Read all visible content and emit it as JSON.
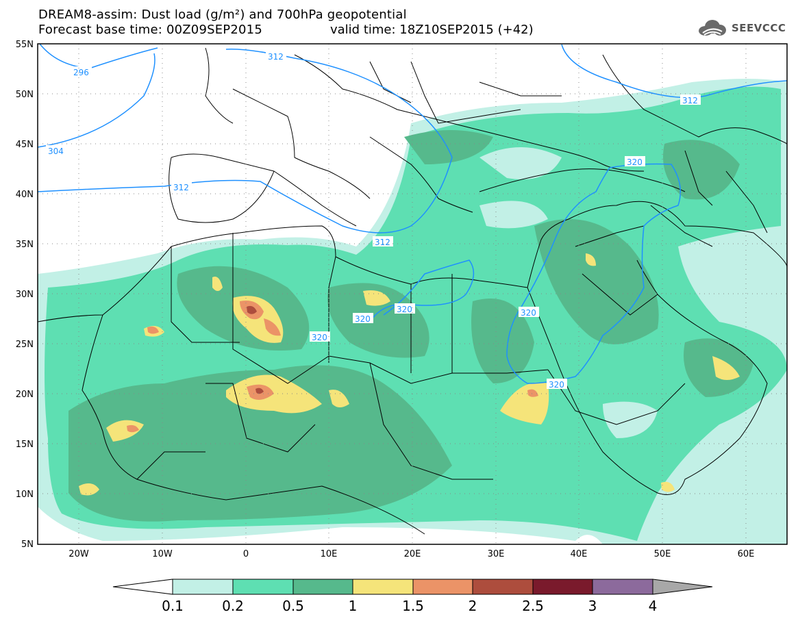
{
  "title": {
    "line1": "DREAM8-assim: Dust load (g/m²) and 700hPa geopotential",
    "base_time": "Forecast base time: 00Z09SEP2015",
    "valid_time": "valid time: 18Z10SEP2015 (+42)"
  },
  "logo": {
    "text": "SEEVCCC",
    "icon": "cloud-icon"
  },
  "map": {
    "region": "North Africa, Europe and Middle East",
    "lon_range": [
      -25,
      65
    ],
    "lat_range": [
      5,
      55
    ],
    "lat_labels": [
      "55N",
      "50N",
      "45N",
      "40N",
      "35N",
      "30N",
      "25N",
      "20N",
      "15N",
      "10N",
      "5N"
    ],
    "lon_labels": [
      "20W",
      "10W",
      "0",
      "10E",
      "20E",
      "30E",
      "40E",
      "50E",
      "60E"
    ],
    "contour_labels": [
      {
        "text": "296"
      },
      {
        "text": "304"
      },
      {
        "text": "312"
      },
      {
        "text": "312"
      },
      {
        "text": "312"
      },
      {
        "text": "312"
      },
      {
        "text": "320"
      },
      {
        "text": "320"
      },
      {
        "text": "320"
      },
      {
        "text": "320"
      },
      {
        "text": "320"
      },
      {
        "text": "320"
      }
    ]
  },
  "colorbar": {
    "labels": [
      "0.1",
      "0.2",
      "0.5",
      "1",
      "1.5",
      "2",
      "2.5",
      "3",
      "4"
    ],
    "colors": [
      "#c2f0e6",
      "#5edfb2",
      "#56b98c",
      "#f5e47a",
      "#eb9367",
      "#ad4d3d",
      "#7a1a2c",
      "#8c6a9c",
      "#a8a8a8"
    ]
  },
  "colors": {
    "contour": "#1e90ff",
    "border": "#000000",
    "dust_0_1": "#c2f0e6",
    "dust_0_2": "#5edfb2",
    "dust_0_5": "#56b98c",
    "dust_1": "#f5e47a",
    "dust_1_5": "#eb9367",
    "dust_2": "#ad4d3d"
  }
}
